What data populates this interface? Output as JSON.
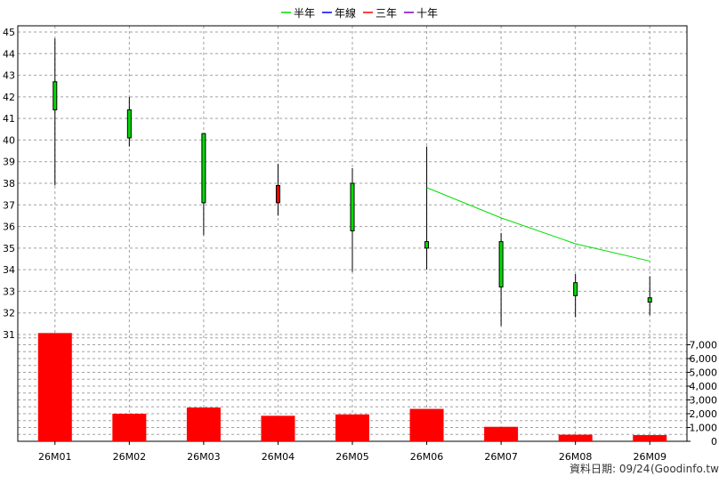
{
  "chart_data": {
    "type": "candlestick",
    "legend": [
      {
        "name": "半年",
        "color": "#00dd00"
      },
      {
        "name": "年線",
        "color": "#0000ff"
      },
      {
        "name": "三年",
        "color": "#ff0000"
      },
      {
        "name": "十年",
        "color": "#8000c0"
      }
    ],
    "categories": [
      "26M01",
      "26M02",
      "26M03",
      "26M04",
      "26M05",
      "26M06",
      "26M07",
      "26M08",
      "26M09"
    ],
    "candles": [
      {
        "open": 42.7,
        "close": 41.4,
        "high": 44.7,
        "low": 37.9
      },
      {
        "open": 41.4,
        "close": 40.1,
        "high": 42.0,
        "low": 39.7
      },
      {
        "open": 40.3,
        "close": 37.1,
        "high": 40.3,
        "low": 35.6
      },
      {
        "open": 37.1,
        "close": 37.9,
        "high": 38.9,
        "low": 36.5
      },
      {
        "open": 38.0,
        "close": 35.8,
        "high": 38.7,
        "low": 33.9
      },
      {
        "open": 35.3,
        "close": 35.0,
        "high": 39.7,
        "low": 34.0
      },
      {
        "open": 35.3,
        "close": 33.2,
        "high": 35.7,
        "low": 31.4
      },
      {
        "open": 33.4,
        "close": 32.8,
        "high": 33.8,
        "low": 31.8
      },
      {
        "open": 32.7,
        "close": 32.5,
        "high": 33.7,
        "low": 31.9
      }
    ],
    "half_year_ma": [
      null,
      null,
      null,
      null,
      null,
      37.8,
      36.4,
      35.2,
      34.4
    ],
    "volume": [
      7850,
      2000,
      2450,
      1850,
      1950,
      2350,
      1050,
      480,
      450
    ],
    "price_ylim": [
      31,
      45
    ],
    "price_ticks": [
      "45",
      "44",
      "43",
      "42",
      "41",
      "40",
      "39",
      "38",
      "37",
      "36",
      "35",
      "34",
      "33",
      "32",
      "31"
    ],
    "volume_ylim": [
      0,
      8000
    ],
    "volume_ticks": [
      "7,000",
      "6,000",
      "5,000",
      "4,000",
      "3,000",
      "2,000",
      "1,000",
      "0"
    ],
    "colors": {
      "up": "#ff0000",
      "down": "#00dd00",
      "volume": "#ff0000",
      "grid": "#a0a0a0",
      "half_year_line": "#00dd00"
    },
    "grid": true,
    "legend_position": "top-center"
  },
  "footer": {
    "data_date": "資料日期: 09/24",
    "source": "(Goodinfo.tw)"
  }
}
